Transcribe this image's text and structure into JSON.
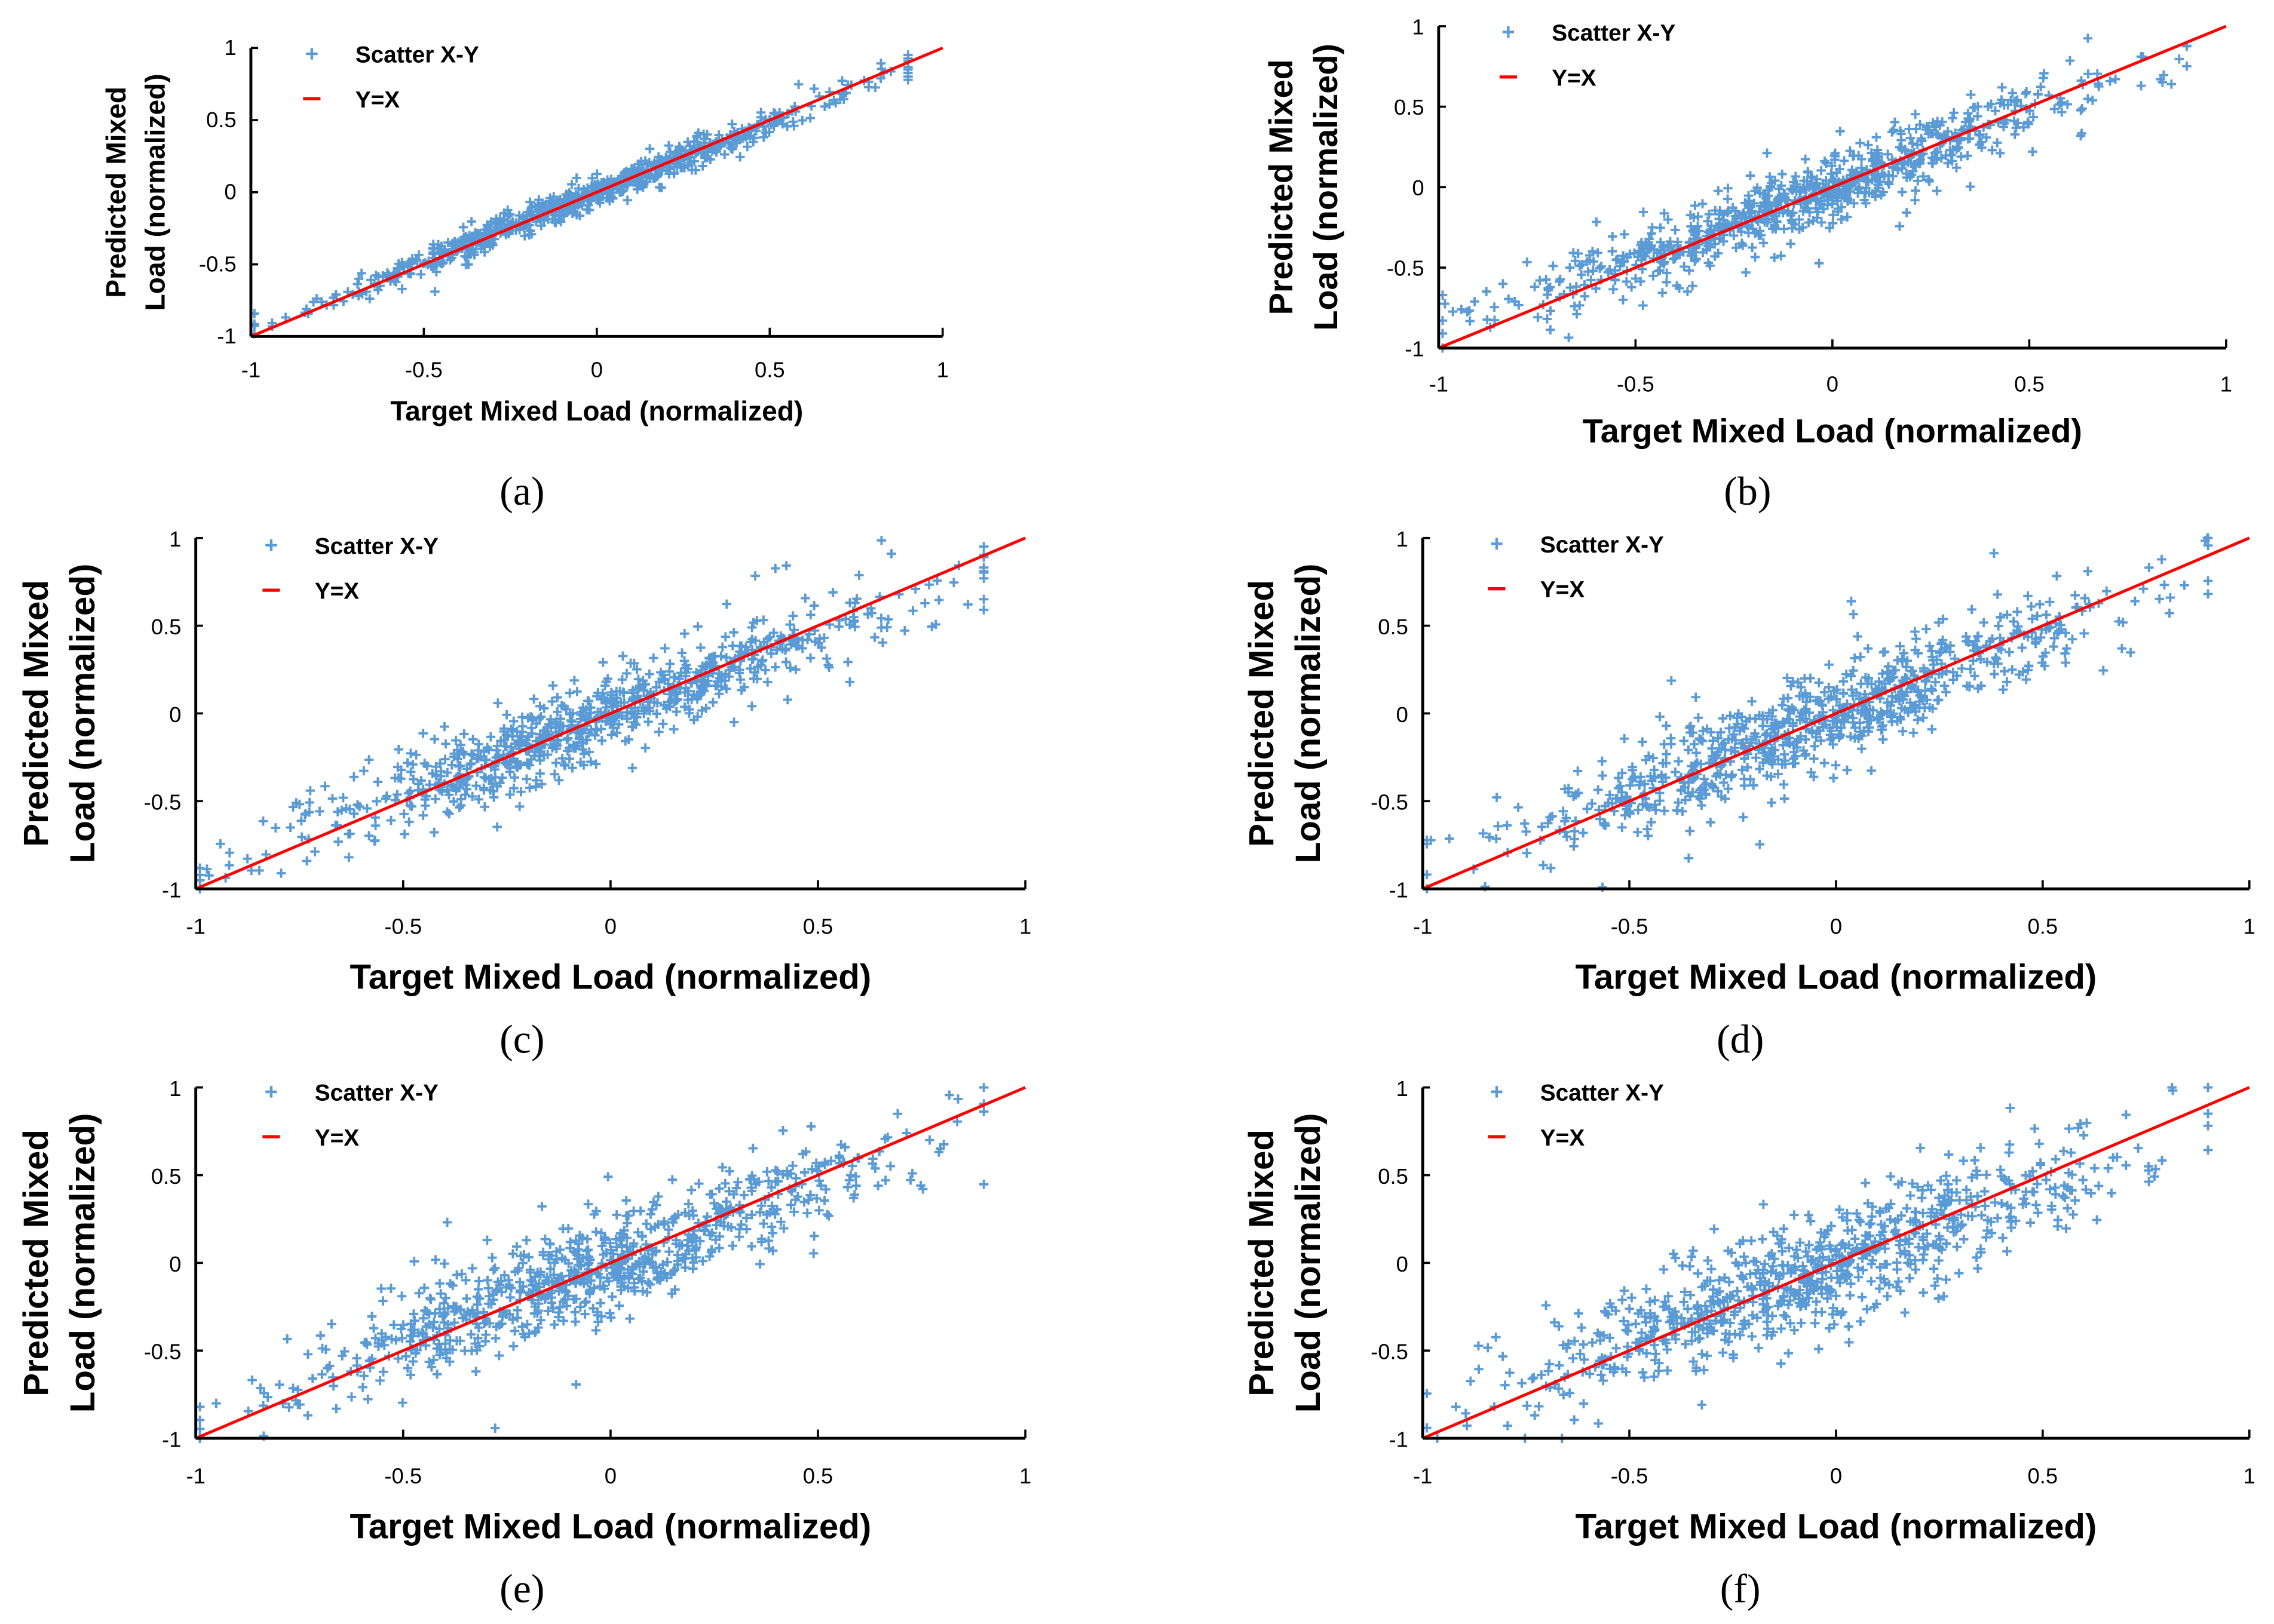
{
  "chart_data": [
    {
      "panel": "a",
      "caption": "(a)",
      "type": "scatter",
      "xlabel": "Target Mixed Load (normalized)",
      "ylabel_lines": [
        "Predicted Mixed",
        "Load (normalized)"
      ],
      "xlim": [
        -1,
        1
      ],
      "ylim": [
        -1,
        1
      ],
      "xticks": [
        "-1",
        "-0.5",
        "0",
        "0.5",
        "1"
      ],
      "yticks": [
        "-1",
        "-0.5",
        "0",
        "0.5",
        "1"
      ],
      "legend": {
        "placement": "top-left",
        "entries": [
          "Scatter X-Y",
          "Y=X"
        ]
      },
      "series": [
        {
          "name": "Scatter X-Y",
          "color": "#5b9bd5",
          "marker": "+",
          "n_points_approx": 800,
          "slope": 0.97,
          "noise_std": 0.045
        },
        {
          "name": "Y=X",
          "color": "#ff0000",
          "x": [
            -1,
            1
          ],
          "y": [
            -1,
            1
          ]
        }
      ]
    },
    {
      "panel": "b",
      "caption": "(b)",
      "type": "scatter",
      "xlabel": "Target Mixed Load (normalized)",
      "ylabel_lines": [
        "Predicted Mixed",
        "Load (normalized)"
      ],
      "xlim": [
        -1,
        1
      ],
      "ylim": [
        -1,
        1
      ],
      "xticks": [
        "-1",
        "-0.5",
        "0",
        "0.5",
        "1"
      ],
      "yticks": [
        "-1",
        "-0.5",
        "0",
        "0.5",
        "1"
      ],
      "legend": {
        "placement": "top-left",
        "entries": [
          "Scatter X-Y",
          "Y=X"
        ]
      },
      "series": [
        {
          "name": "Scatter X-Y",
          "color": "#5b9bd5",
          "marker": "+",
          "n_points_approx": 800,
          "slope": 0.92,
          "noise_std": 0.1
        },
        {
          "name": "Y=X",
          "color": "#ff0000",
          "x": [
            -1,
            1
          ],
          "y": [
            -1,
            1
          ]
        }
      ]
    },
    {
      "panel": "c",
      "caption": "(c)",
      "type": "scatter",
      "xlabel": "Target Mixed Load (normalized)",
      "ylabel_lines": [
        "Predicted Mixed",
        "Load (normalized)"
      ],
      "xlim": [
        -1,
        1
      ],
      "ylim": [
        -1,
        1
      ],
      "xticks": [
        "-1",
        "-0.5",
        "0",
        "0.5",
        "1"
      ],
      "yticks": [
        "-1",
        "-0.5",
        "0",
        "0.5",
        "1"
      ],
      "legend": {
        "placement": "top-left",
        "entries": [
          "Scatter X-Y",
          "Y=X"
        ]
      },
      "series": [
        {
          "name": "Scatter X-Y",
          "color": "#5b9bd5",
          "marker": "+",
          "n_points_approx": 800,
          "slope": 0.92,
          "noise_std": 0.11
        },
        {
          "name": "Y=X",
          "color": "#ff0000",
          "x": [
            -1,
            1
          ],
          "y": [
            -1,
            1
          ]
        }
      ]
    },
    {
      "panel": "d",
      "caption": "(d)",
      "type": "scatter",
      "xlabel": "Target Mixed Load (normalized)",
      "ylabel_lines": [
        "Predicted Mixed",
        "Load (normalized)"
      ],
      "xlim": [
        -1,
        1
      ],
      "ylim": [
        -1,
        1
      ],
      "xticks": [
        "-1",
        "-0.5",
        "0",
        "0.5",
        "1"
      ],
      "yticks": [
        "-1",
        "-0.5",
        "0",
        "0.5",
        "1"
      ],
      "legend": {
        "placement": "top-left",
        "entries": [
          "Scatter X-Y",
          "Y=X"
        ]
      },
      "series": [
        {
          "name": "Scatter X-Y",
          "color": "#5b9bd5",
          "marker": "+",
          "n_points_approx": 800,
          "slope": 0.88,
          "noise_std": 0.13
        },
        {
          "name": "Y=X",
          "color": "#ff0000",
          "x": [
            -1,
            1
          ],
          "y": [
            -1,
            1
          ]
        }
      ]
    },
    {
      "panel": "e",
      "caption": "(e)",
      "type": "scatter",
      "xlabel": "Target Mixed Load (normalized)",
      "ylabel_lines": [
        "Predicted Mixed",
        "Load (normalized)"
      ],
      "xlim": [
        -1,
        1
      ],
      "ylim": [
        -1,
        1
      ],
      "xticks": [
        "-1",
        "-0.5",
        "0",
        "0.5",
        "1"
      ],
      "yticks": [
        "-1",
        "-0.5",
        "0",
        "0.5",
        "1"
      ],
      "legend": {
        "placement": "top-left",
        "entries": [
          "Scatter X-Y",
          "Y=X"
        ]
      },
      "series": [
        {
          "name": "Scatter X-Y",
          "color": "#5b9bd5",
          "marker": "+",
          "n_points_approx": 800,
          "slope": 0.88,
          "noise_std": 0.13
        },
        {
          "name": "Y=X",
          "color": "#ff0000",
          "x": [
            -1,
            1
          ],
          "y": [
            -1,
            1
          ]
        }
      ]
    },
    {
      "panel": "f",
      "caption": "(f)",
      "type": "scatter",
      "xlabel": "Target Mixed Load (normalized)",
      "ylabel_lines": [
        "Predicted Mixed",
        "Load (normalized)"
      ],
      "xlim": [
        -1,
        1
      ],
      "ylim": [
        -1,
        1
      ],
      "xticks": [
        "-1",
        "-0.5",
        "0",
        "0.5",
        "1"
      ],
      "yticks": [
        "-1",
        "-0.5",
        "0",
        "0.5",
        "1"
      ],
      "legend": {
        "placement": "top-left",
        "entries": [
          "Scatter X-Y",
          "Y=X"
        ]
      },
      "series": [
        {
          "name": "Scatter X-Y",
          "color": "#5b9bd5",
          "marker": "+",
          "n_points_approx": 800,
          "slope": 0.85,
          "noise_std": 0.15
        },
        {
          "name": "Y=X",
          "color": "#ff0000",
          "x": [
            -1,
            1
          ],
          "y": [
            -1,
            1
          ]
        }
      ]
    }
  ]
}
